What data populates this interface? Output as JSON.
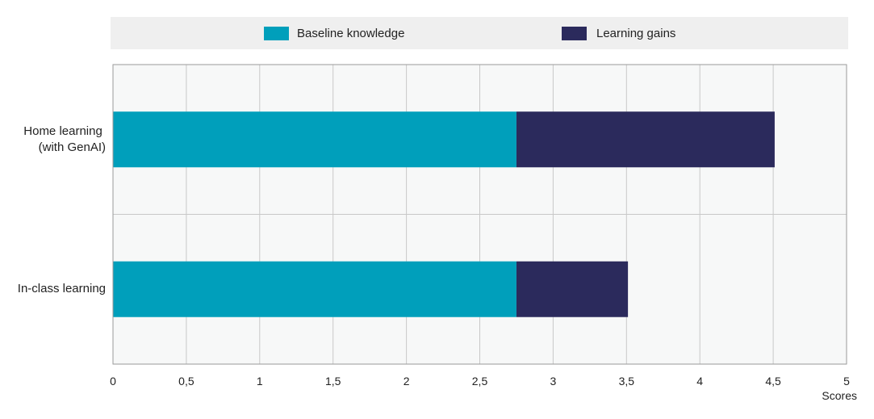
{
  "chart_data": {
    "type": "bar",
    "orientation": "horizontal",
    "stacked": true,
    "categories": [
      "Home learning\n(with GenAI)",
      "In-class learning"
    ],
    "series": [
      {
        "name": "Baseline knowledge",
        "values": [
          2.75,
          2.75
        ],
        "color": "#009fbb"
      },
      {
        "name": "Learning gains",
        "values": [
          1.76,
          0.76
        ],
        "color": "#2b2a5c"
      }
    ],
    "xlabel": "Scores",
    "xlim": [
      0,
      5
    ],
    "xticks": [
      0,
      0.5,
      1,
      1.5,
      2,
      2.5,
      3,
      3.5,
      4,
      4.5,
      5
    ],
    "xtick_labels": [
      "0",
      "0,5",
      "1",
      "1,5",
      "2",
      "2,5",
      "3",
      "3,5",
      "4",
      "4,5",
      "5"
    ],
    "grid": true,
    "legend_position": "top"
  },
  "colors": {
    "plot_background": "#f7f8f8",
    "grid": "#c8c8c8",
    "legend_background": "#efefef"
  }
}
